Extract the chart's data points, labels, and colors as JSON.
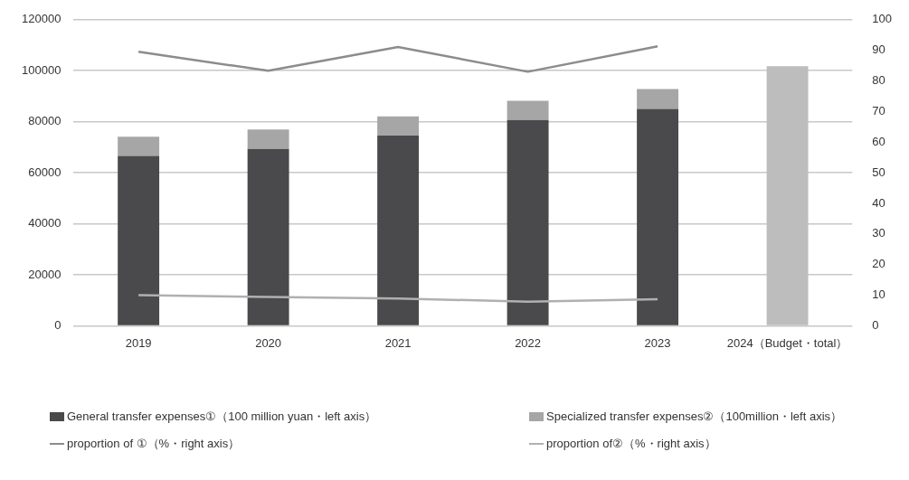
{
  "chart_data": {
    "type": "bar",
    "stacked": true,
    "categories": [
      "2019",
      "2020",
      "2021",
      "2022",
      "2023",
      "2024（Budget・total）"
    ],
    "series": [
      {
        "name": "General transfer expenses①（100 million yuan・left axis）",
        "color": "#4a4a4c",
        "values": [
          66600,
          69300,
          74600,
          80700,
          85000,
          null
        ]
      },
      {
        "name": "Specialized transfer expenses②（100million・left axis）",
        "color": "#a6a6a6",
        "values": [
          7500,
          7700,
          7500,
          7500,
          7800,
          null
        ]
      },
      {
        "color": "#bdbdbd",
        "values": [
          null,
          null,
          null,
          null,
          null,
          101800
        ]
      },
      {
        "name": "proportion of ①（%・right axis）",
        "type": "line",
        "axis": "y2",
        "color": "#8c8c8c",
        "values": [
          89.5,
          83.3,
          91.1,
          83.0,
          91.3,
          null
        ]
      },
      {
        "name": "proportion of②（%・right axis）",
        "type": "line",
        "axis": "y2",
        "color": "#b0b0b0",
        "values": [
          10.0,
          9.4,
          8.9,
          7.9,
          8.7,
          null
        ]
      }
    ],
    "ylim": [
      0,
      120000
    ],
    "yticks": [
      0,
      20000,
      40000,
      60000,
      80000,
      100000,
      120000
    ],
    "y2lim": [
      0,
      100
    ],
    "y2ticks": [
      0,
      10,
      20,
      30,
      40,
      50,
      60,
      70,
      80,
      90,
      100
    ],
    "grid": "y",
    "legend": "bottom",
    "marker": "none"
  }
}
